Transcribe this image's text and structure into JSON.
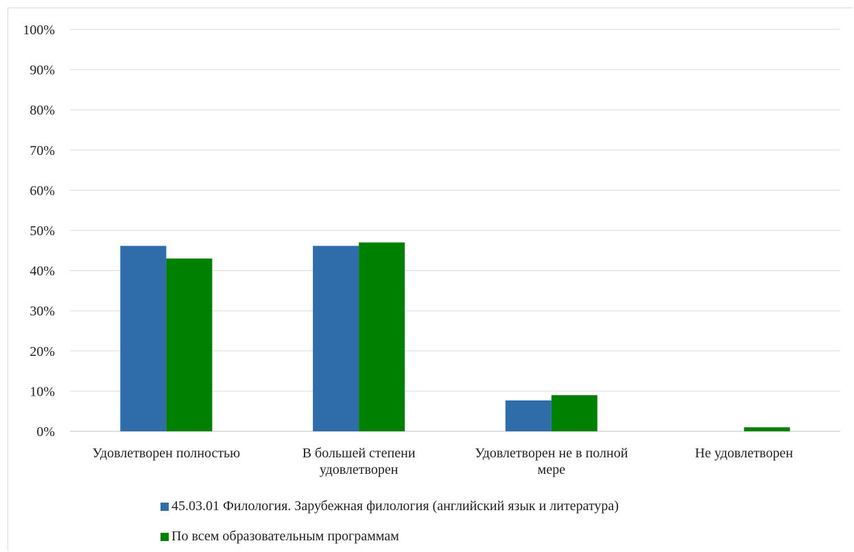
{
  "chart_data": {
    "type": "bar",
    "categories": [
      [
        "Удовлетворен полностью"
      ],
      [
        "В большей степени",
        "удовлетворен"
      ],
      [
        "Удовлетворен не в полной",
        "мере"
      ],
      [
        "Не удовлетворен"
      ]
    ],
    "series": [
      {
        "name": "45.03.01 Филология. Зарубежная филология (английский язык и литература)",
        "color": "#2e6da9",
        "values": [
          46.15,
          46.15,
          7.69,
          0
        ]
      },
      {
        "name": "По всем образовательным программам",
        "color": "#008000",
        "values": [
          43,
          47,
          9,
          1
        ]
      }
    ],
    "yticks": [
      "0%",
      "10%",
      "20%",
      "30%",
      "40%",
      "50%",
      "60%",
      "70%",
      "80%",
      "90%",
      "100%"
    ],
    "ylim": [
      0,
      100
    ],
    "grid": true,
    "legend_position": "bottom"
  }
}
